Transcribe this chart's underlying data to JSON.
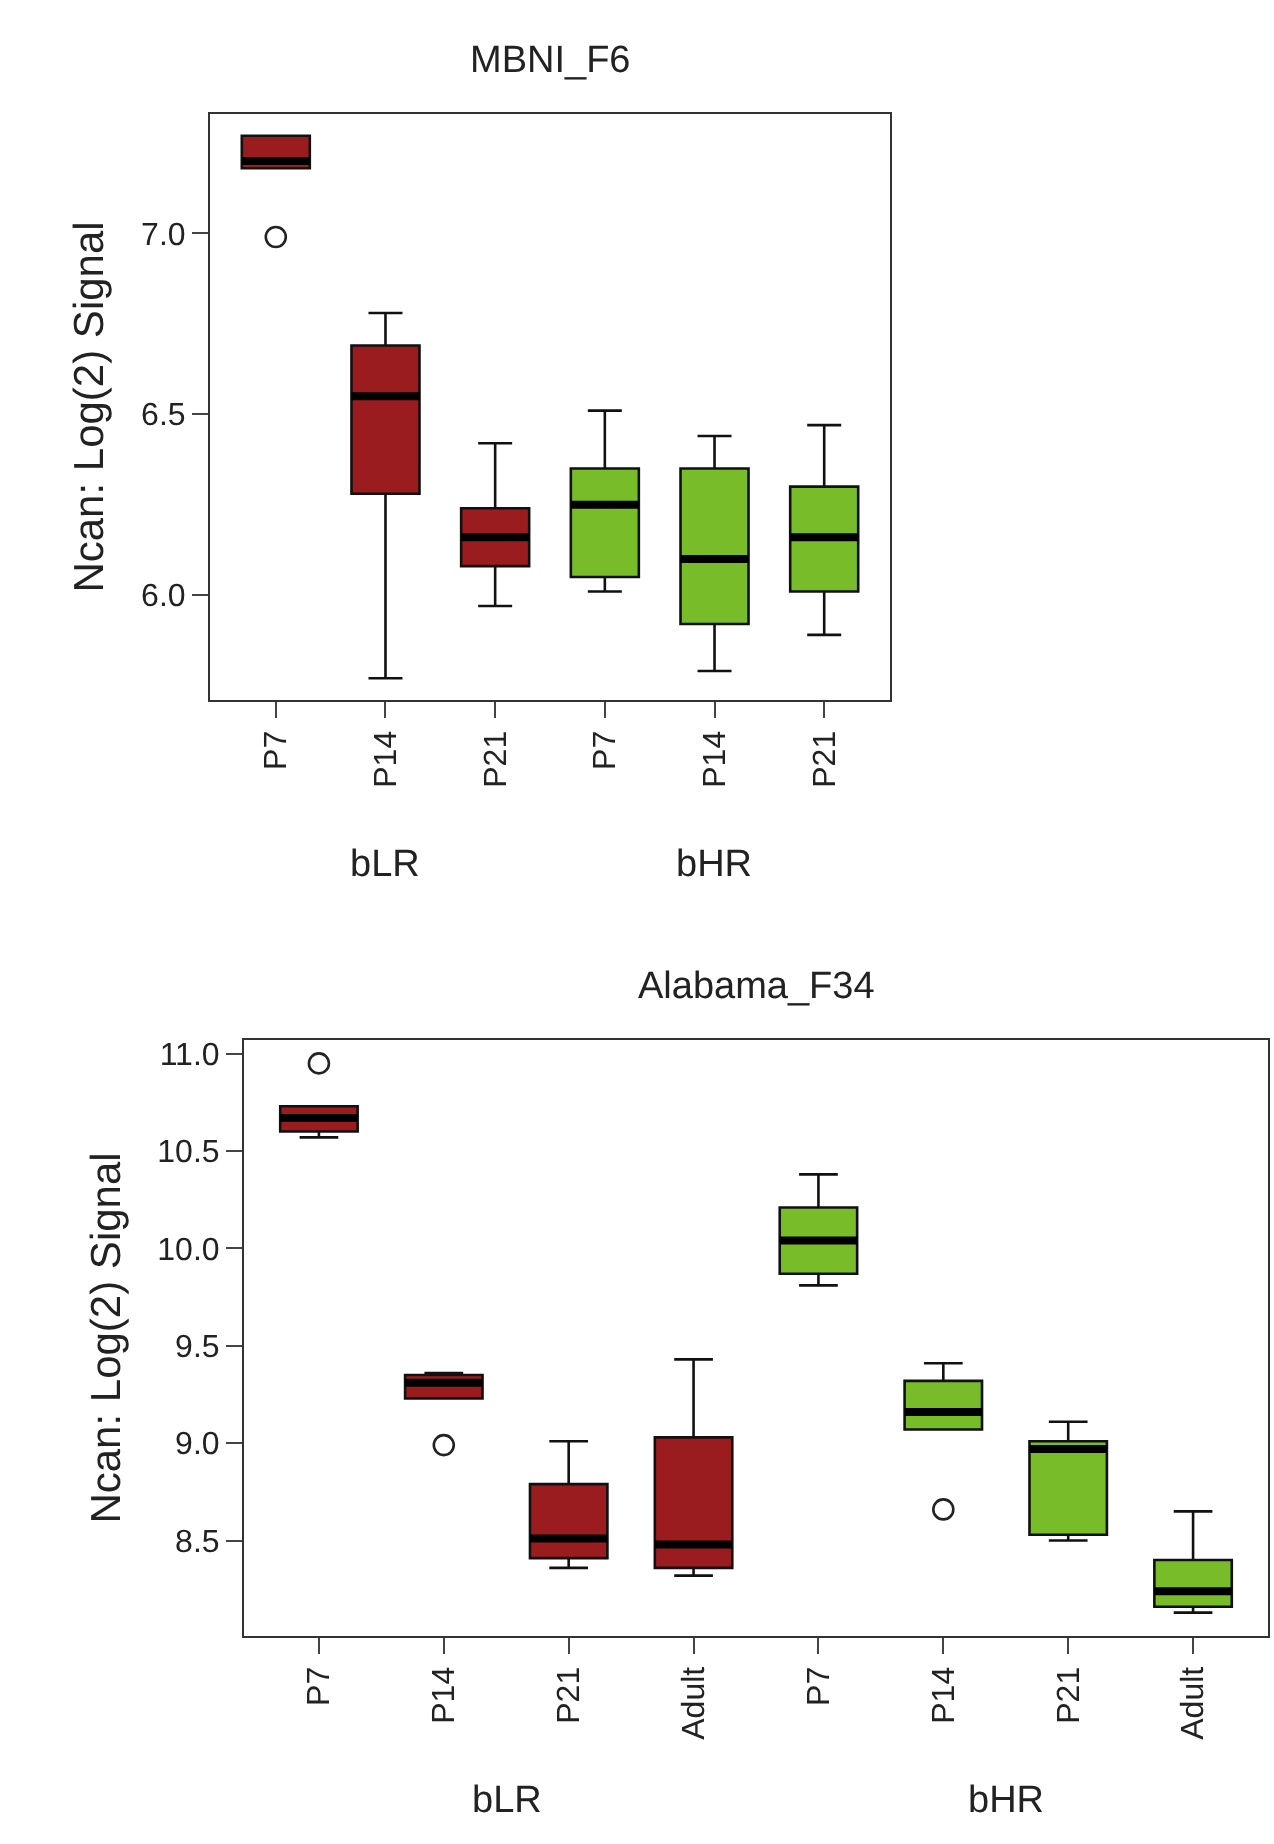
{
  "chart_data": [
    {
      "type": "box",
      "title": "MBNI_F6",
      "ylabel": "Ncan: Log(2) Signal",
      "categories": [
        "P7",
        "P14",
        "P21",
        "P7",
        "P14",
        "P21"
      ],
      "colors": [
        "#9b1c1f",
        "#9b1c1f",
        "#9b1c1f",
        "#78bc2a",
        "#78bc2a",
        "#78bc2a"
      ],
      "boxes": [
        {
          "low": 7.18,
          "q1": 7.18,
          "median": 7.2,
          "q3": 7.27,
          "high": 7.27,
          "outliers": [
            6.99
          ]
        },
        {
          "low": 5.77,
          "q1": 6.28,
          "median": 6.55,
          "q3": 6.69,
          "high": 6.78
        },
        {
          "low": 5.97,
          "q1": 6.08,
          "median": 6.16,
          "q3": 6.24,
          "high": 6.42
        },
        {
          "low": 6.01,
          "q1": 6.05,
          "median": 6.25,
          "q3": 6.35,
          "high": 6.51
        },
        {
          "low": 5.79,
          "q1": 5.92,
          "median": 6.1,
          "q3": 6.35,
          "high": 6.44
        },
        {
          "low": 5.89,
          "q1": 6.01,
          "median": 6.16,
          "q3": 6.3,
          "high": 6.47
        }
      ],
      "ylim": [
        5.71,
        7.33
      ],
      "yticks": [
        {
          "value": 6,
          "label": "6.0"
        },
        6.5,
        {
          "value": 7,
          "label": "7.0"
        }
      ],
      "marker": "circle",
      "annotations": [
        "bLR",
        "bHR"
      ]
    },
    {
      "type": "box",
      "title": "Alabama_F34",
      "ylabel": "Ncan: Log(2) Signal",
      "categories": [
        "P7",
        "P14",
        "P21",
        "Adult",
        "P7",
        "P14",
        "P21",
        "Adult"
      ],
      "colors": [
        "#9b1c1f",
        "#9b1c1f",
        "#9b1c1f",
        "#9b1c1f",
        "#78bc2a",
        "#78bc2a",
        "#78bc2a",
        "#78bc2a"
      ],
      "boxes": [
        {
          "low": 10.57,
          "q1": 10.6,
          "median": 10.67,
          "q3": 10.73,
          "high": 10.73,
          "outliers": [
            10.95
          ]
        },
        {
          "low": 9.23,
          "q1": 9.23,
          "median": 9.31,
          "q3": 9.35,
          "high": 9.36,
          "outliers": [
            8.99
          ]
        },
        {
          "low": 8.36,
          "q1": 8.41,
          "median": 8.51,
          "q3": 8.79,
          "high": 9.01
        },
        {
          "low": 8.32,
          "q1": 8.36,
          "median": 8.48,
          "q3": 9.03,
          "high": 9.43
        },
        {
          "low": 9.81,
          "q1": 9.87,
          "median": 10.04,
          "q3": 10.21,
          "high": 10.38
        },
        {
          "low": 9.07,
          "q1": 9.07,
          "median": 9.16,
          "q3": 9.32,
          "high": 9.41,
          "outliers": [
            8.66
          ]
        },
        {
          "low": 8.5,
          "q1": 8.53,
          "median": 8.97,
          "q3": 9.01,
          "high": 9.11
        },
        {
          "low": 8.13,
          "q1": 8.16,
          "median": 8.24,
          "q3": 8.4,
          "high": 8.65
        }
      ],
      "ylim": [
        8.01,
        11.07
      ],
      "yticks": [
        8.5,
        {
          "value": 9,
          "label": "9.0"
        },
        9.5,
        {
          "value": 10,
          "label": "10.0"
        },
        10.5,
        {
          "value": 11,
          "label": "11.0"
        }
      ],
      "marker": "circle",
      "annotations": [
        "bLR",
        "bHR"
      ]
    }
  ]
}
